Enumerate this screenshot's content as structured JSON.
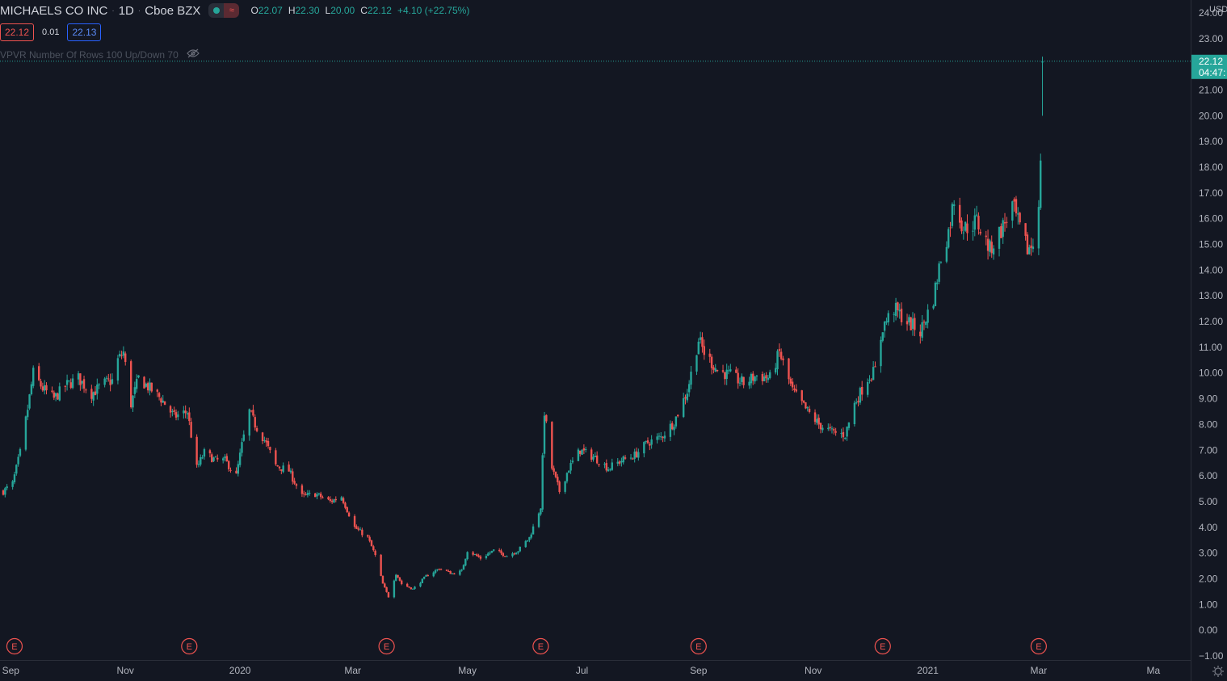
{
  "legend": {
    "symbol": "MICHAELS CO INC",
    "interval": "1D",
    "exchange": "Cboe BZX",
    "mode_icon": "wave-icon",
    "o_label": "O",
    "o_value": "22.07",
    "h_label": "H",
    "h_value": "22.30",
    "l_label": "L",
    "l_value": "20.00",
    "c_label": "C",
    "c_value": "22.12",
    "change": "+4.10 (+22.75%)"
  },
  "quote": {
    "bid": "22.12",
    "spread": "0.01",
    "ask": "22.13"
  },
  "indicator": {
    "label": "VPVR Number Of Rows 100 Up/Down 70",
    "icon": "eye-hidden-icon"
  },
  "colors": {
    "up": "#26a69a",
    "down": "#ef5350",
    "background": "#131722",
    "axis_text": "#b2b5be",
    "earnings": "#ef5350"
  },
  "chart_data": {
    "type": "candlestick",
    "title": "",
    "currency": "USD",
    "last_price": "22.12",
    "countdown": "04:47:",
    "ylim": [
      -1,
      24.5
    ],
    "y_ticks": [
      "24.00",
      "23.00",
      "22.00",
      "21.00",
      "20.00",
      "19.00",
      "18.00",
      "17.00",
      "16.00",
      "15.00",
      "14.00",
      "13.00",
      "12.00",
      "11.00",
      "10.00",
      "9.00",
      "8.00",
      "7.00",
      "6.00",
      "5.00",
      "4.00",
      "3.00",
      "2.00",
      "1.00",
      "0.00",
      "−1.00"
    ],
    "x_ticks": [
      {
        "label": "Sep",
        "date": "2019-09-01"
      },
      {
        "label": "Nov",
        "date": "2019-11-01"
      },
      {
        "label": "2020",
        "date": "2020-01-01"
      },
      {
        "label": "Mar",
        "date": "2020-03-01"
      },
      {
        "label": "May",
        "date": "2020-05-01"
      },
      {
        "label": "Jul",
        "date": "2020-07-01"
      },
      {
        "label": "Sep",
        "date": "2020-09-01"
      },
      {
        "label": "Nov",
        "date": "2020-11-01"
      },
      {
        "label": "2021",
        "date": "2021-01-01"
      },
      {
        "label": "Mar",
        "date": "2021-03-01"
      },
      {
        "label": "Ma",
        "date": "2021-05-01"
      }
    ],
    "xlim": [
      "2019-08-28",
      "2021-05-20"
    ],
    "earnings_label": "E",
    "earnings": [
      "2019-09-03",
      "2019-12-05",
      "2020-03-19",
      "2020-06-09",
      "2020-09-01",
      "2020-12-08",
      "2021-03-01"
    ],
    "series": [
      {
        "points": [
          [
            "2019-08-28",
            5.4
          ],
          [
            "2019-09-02",
            5.7
          ],
          [
            "2019-09-06",
            6.9
          ],
          [
            "2019-09-10",
            8.6
          ],
          [
            "2019-09-13",
            10.0
          ],
          [
            "2019-09-18",
            9.4
          ],
          [
            "2019-09-24",
            9.0
          ],
          [
            "2019-09-30",
            9.5
          ],
          [
            "2019-10-07",
            9.8
          ],
          [
            "2019-10-14",
            9.2
          ],
          [
            "2019-10-21",
            9.6
          ],
          [
            "2019-10-25",
            9.7
          ],
          [
            "2019-10-28",
            10.5
          ],
          [
            "2019-10-31",
            10.8
          ],
          [
            "2019-11-04",
            8.8
          ],
          [
            "2019-11-08",
            9.8
          ],
          [
            "2019-11-14",
            9.4
          ],
          [
            "2019-11-20",
            9.0
          ],
          [
            "2019-11-27",
            8.3
          ],
          [
            "2019-12-04",
            8.5
          ],
          [
            "2019-12-06",
            7.6
          ],
          [
            "2019-12-09",
            6.3
          ],
          [
            "2019-12-13",
            6.9
          ],
          [
            "2019-12-19",
            6.6
          ],
          [
            "2019-12-24",
            6.6
          ],
          [
            "2019-12-30",
            6.0
          ],
          [
            "2020-01-02",
            7.2
          ],
          [
            "2020-01-06",
            8.5
          ],
          [
            "2020-01-09",
            8.0
          ],
          [
            "2020-01-14",
            7.4
          ],
          [
            "2020-01-20",
            6.4
          ],
          [
            "2020-01-27",
            6.2
          ],
          [
            "2020-02-03",
            5.2
          ],
          [
            "2020-02-10",
            5.3
          ],
          [
            "2020-02-18",
            5.0
          ],
          [
            "2020-02-24",
            5.2
          ],
          [
            "2020-03-02",
            4.0
          ],
          [
            "2020-03-09",
            3.6
          ],
          [
            "2020-03-13",
            2.9
          ],
          [
            "2020-03-17",
            1.8
          ],
          [
            "2020-03-20",
            1.3
          ],
          [
            "2020-03-24",
            2.2
          ],
          [
            "2020-03-27",
            1.8
          ],
          [
            "2020-04-02",
            1.6
          ],
          [
            "2020-04-09",
            2.1
          ],
          [
            "2020-04-16",
            2.4
          ],
          [
            "2020-04-23",
            2.2
          ],
          [
            "2020-04-28",
            2.3
          ],
          [
            "2020-05-01",
            3.1
          ],
          [
            "2020-05-08",
            2.8
          ],
          [
            "2020-05-15",
            3.1
          ],
          [
            "2020-05-22",
            2.9
          ],
          [
            "2020-05-28",
            3.1
          ],
          [
            "2020-06-03",
            3.6
          ],
          [
            "2020-06-09",
            4.8
          ],
          [
            "2020-06-11",
            8.5
          ],
          [
            "2020-06-15",
            6.3
          ],
          [
            "2020-06-19",
            5.4
          ],
          [
            "2020-06-24",
            6.3
          ],
          [
            "2020-06-30",
            7.0
          ],
          [
            "2020-07-08",
            6.7
          ],
          [
            "2020-07-15",
            6.3
          ],
          [
            "2020-07-22",
            6.6
          ],
          [
            "2020-07-29",
            6.8
          ],
          [
            "2020-08-05",
            7.3
          ],
          [
            "2020-08-12",
            7.5
          ],
          [
            "2020-08-19",
            8.1
          ],
          [
            "2020-08-26",
            9.3
          ],
          [
            "2020-09-01",
            11.3
          ],
          [
            "2020-09-04",
            10.8
          ],
          [
            "2020-09-11",
            10.1
          ],
          [
            "2020-09-18",
            9.9
          ],
          [
            "2020-09-25",
            9.6
          ],
          [
            "2020-10-02",
            9.9
          ],
          [
            "2020-10-09",
            9.8
          ],
          [
            "2020-10-14",
            10.8
          ],
          [
            "2020-10-21",
            9.3
          ],
          [
            "2020-10-28",
            8.6
          ],
          [
            "2020-11-04",
            8.0
          ],
          [
            "2020-11-11",
            7.7
          ],
          [
            "2020-11-18",
            7.6
          ],
          [
            "2020-11-23",
            8.8
          ],
          [
            "2020-11-30",
            9.8
          ],
          [
            "2020-12-04",
            10.1
          ],
          [
            "2020-12-08",
            11.8
          ],
          [
            "2020-12-14",
            12.5
          ],
          [
            "2020-12-21",
            12.0
          ],
          [
            "2020-12-28",
            11.6
          ],
          [
            "2021-01-04",
            12.9
          ],
          [
            "2021-01-08",
            14.5
          ],
          [
            "2021-01-12",
            15.5
          ],
          [
            "2021-01-15",
            16.8
          ],
          [
            "2021-01-20",
            15.6
          ],
          [
            "2021-01-27",
            15.9
          ],
          [
            "2021-02-03",
            14.8
          ],
          [
            "2021-02-10",
            15.7
          ],
          [
            "2021-02-15",
            16.5
          ],
          [
            "2021-02-19",
            15.6
          ],
          [
            "2021-02-23",
            14.8
          ],
          [
            "2021-02-26",
            15.0
          ],
          [
            "2021-03-01",
            16.8
          ],
          [
            "2021-03-02",
            18.0
          ],
          [
            "2021-03-03",
            22.12
          ]
        ]
      }
    ]
  }
}
